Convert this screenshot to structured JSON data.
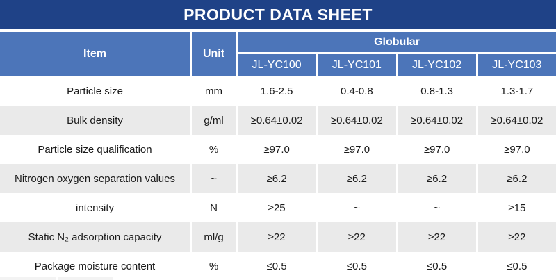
{
  "title": "PRODUCT DATA SHEET",
  "colors": {
    "title_bar": "#1F4287",
    "header_blue": "#4C75B9",
    "row_shaded": "#EAEAEA",
    "row_plain": "#FFFFFF",
    "text_body": "#1A1A1A",
    "text_header": "#FFFFFF"
  },
  "table": {
    "item_header": "Item",
    "unit_header": "Unit",
    "group_header": "Globular",
    "models": [
      "JL-YC100",
      "JL-YC101",
      "JL-YC102",
      "JL-YC103"
    ],
    "rows": [
      {
        "item": "Particle size",
        "unit": "mm",
        "values": [
          "1.6-2.5",
          "0.4-0.8",
          "0.8-1.3",
          "1.3-1.7"
        ]
      },
      {
        "item": "Bulk density",
        "unit": "g/ml",
        "values": [
          "≥0.64±0.02",
          "≥0.64±0.02",
          "≥0.64±0.02",
          "≥0.64±0.02"
        ]
      },
      {
        "item": "Particle size qualification",
        "unit": "%",
        "values": [
          "≥97.0",
          "≥97.0",
          "≥97.0",
          "≥97.0"
        ]
      },
      {
        "item": "Nitrogen oxygen separation values",
        "unit": "~",
        "values": [
          "≥6.2",
          "≥6.2",
          "≥6.2",
          "≥6.2"
        ]
      },
      {
        "item": "intensity",
        "unit": "N",
        "values": [
          "≥25",
          "~",
          "~",
          "≥15"
        ]
      },
      {
        "item": "Static N₂ adsorption capacity",
        "unit": "ml/g",
        "values": [
          "≥22",
          "≥22",
          "≥22",
          "≥22"
        ]
      },
      {
        "item": "Package moisture content",
        "unit": "%",
        "values": [
          "≤0.5",
          "≤0.5",
          "≤0.5",
          "≤0.5"
        ]
      }
    ]
  }
}
